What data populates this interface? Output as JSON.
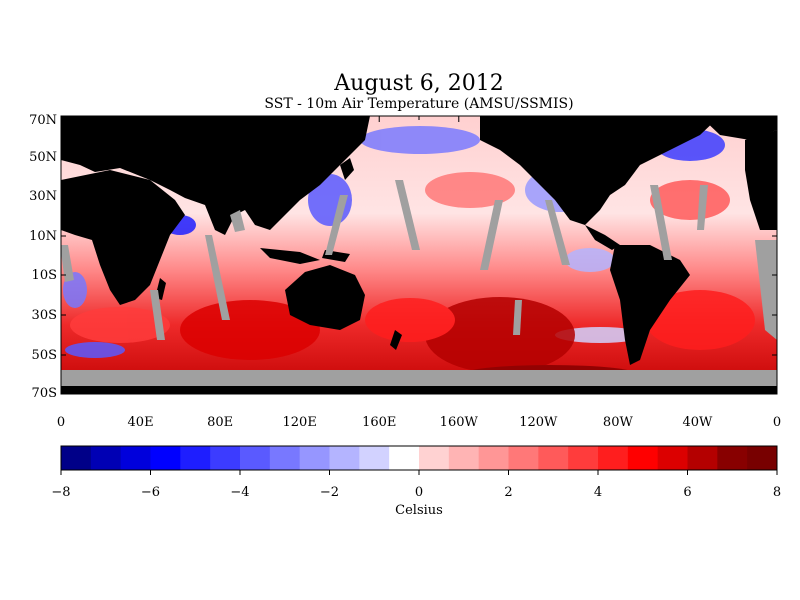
{
  "title": "August 6, 2012",
  "subtitle": "SST - 10m Air Temperature (AMSU/SSMIS)",
  "lat_labels": [
    "70N",
    "50N",
    "30N",
    "10N",
    "10S",
    "30S",
    "50S",
    "70S"
  ],
  "lon_labels": [
    "0",
    "40E",
    "80E",
    "120E",
    "160E",
    "160W",
    "120W",
    "80W",
    "40W",
    "0"
  ],
  "colorbar": {
    "tick_labels": [
      "−8",
      "−6",
      "−4",
      "−2",
      "0",
      "2",
      "4",
      "6",
      "8"
    ],
    "unit_label": "Celsius",
    "min": -8,
    "max": 8,
    "colors": [
      "#000088",
      "#0000b4",
      "#0000dc",
      "#0000ff",
      "#1e1eff",
      "#3c3cff",
      "#5a5aff",
      "#7878ff",
      "#9696ff",
      "#b4b4ff",
      "#d2d2ff",
      "#ffffff",
      "#ffd2d2",
      "#ffb4b4",
      "#ff9696",
      "#ff7878",
      "#ff5a5a",
      "#ff3c3c",
      "#ff1e1e",
      "#ff0000",
      "#dc0000",
      "#b40000",
      "#880000",
      "#780000"
    ]
  },
  "colors": {
    "land": "#000000",
    "no_data": "#a0a0a0"
  }
}
